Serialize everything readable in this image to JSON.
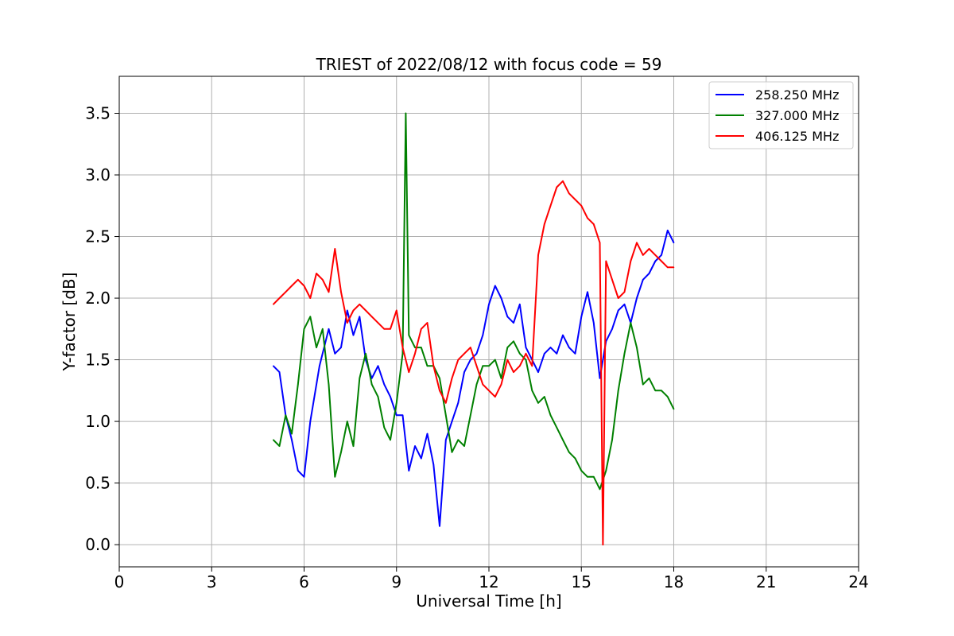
{
  "chart_data": {
    "type": "line",
    "title": "TRIEST of 2022/08/12 with focus code = 59",
    "xlabel": "Universal Time [h]",
    "ylabel": "Y-factor [dB]",
    "xlim": [
      0,
      24
    ],
    "ylim": [
      -0.18,
      3.8
    ],
    "x_ticks": [
      0,
      3,
      6,
      9,
      12,
      15,
      18,
      21,
      24
    ],
    "x_tick_labels": [
      "0",
      "3",
      "6",
      "9",
      "12",
      "15",
      "18",
      "21",
      "24"
    ],
    "y_ticks": [
      0.0,
      0.5,
      1.0,
      1.5,
      2.0,
      2.5,
      3.0,
      3.5
    ],
    "y_tick_labels": [
      "0.0",
      "0.5",
      "1.0",
      "1.5",
      "2.0",
      "2.5",
      "3.0",
      "3.5"
    ],
    "grid": true,
    "legend_position": "top-right",
    "series": [
      {
        "name": "258.250 MHz",
        "color": "#0000ff",
        "x": [
          5.0,
          5.2,
          5.4,
          5.6,
          5.8,
          6.0,
          6.2,
          6.5,
          6.8,
          7.0,
          7.2,
          7.4,
          7.6,
          7.8,
          8.0,
          8.2,
          8.4,
          8.6,
          8.8,
          9.0,
          9.2,
          9.4,
          9.6,
          9.8,
          10.0,
          10.2,
          10.4,
          10.6,
          10.8,
          11.0,
          11.2,
          11.4,
          11.6,
          11.8,
          12.0,
          12.2,
          12.4,
          12.6,
          12.8,
          13.0,
          13.2,
          13.4,
          13.6,
          13.8,
          14.0,
          14.2,
          14.4,
          14.6,
          14.8,
          15.0,
          15.2,
          15.4,
          15.6,
          15.8,
          16.0,
          16.2,
          16.4,
          16.6,
          16.8,
          17.0,
          17.2,
          17.4,
          17.6,
          17.8,
          18.0
        ],
        "y": [
          1.45,
          1.4,
          1.05,
          0.85,
          0.6,
          0.55,
          1.0,
          1.45,
          1.75,
          1.55,
          1.6,
          1.9,
          1.7,
          1.85,
          1.5,
          1.35,
          1.45,
          1.3,
          1.2,
          1.05,
          1.05,
          0.6,
          0.8,
          0.7,
          0.9,
          0.65,
          0.15,
          0.85,
          1.0,
          1.15,
          1.4,
          1.5,
          1.55,
          1.7,
          1.95,
          2.1,
          2.0,
          1.85,
          1.8,
          1.95,
          1.6,
          1.5,
          1.4,
          1.55,
          1.6,
          1.55,
          1.7,
          1.6,
          1.55,
          1.85,
          2.05,
          1.8,
          1.35,
          1.65,
          1.75,
          1.9,
          1.95,
          1.8,
          2.0,
          2.15,
          2.2,
          2.3,
          2.35,
          2.55,
          2.45
        ]
      },
      {
        "name": "327.000 MHz",
        "color": "#008000",
        "x": [
          5.0,
          5.2,
          5.4,
          5.6,
          5.8,
          6.0,
          6.2,
          6.4,
          6.6,
          6.8,
          7.0,
          7.2,
          7.4,
          7.6,
          7.8,
          8.0,
          8.2,
          8.4,
          8.6,
          8.8,
          9.0,
          9.2,
          9.3,
          9.4,
          9.6,
          9.8,
          10.0,
          10.2,
          10.4,
          10.6,
          10.8,
          11.0,
          11.2,
          11.4,
          11.6,
          11.8,
          12.0,
          12.2,
          12.4,
          12.6,
          12.8,
          13.0,
          13.2,
          13.4,
          13.6,
          13.8,
          14.0,
          14.2,
          14.4,
          14.6,
          14.8,
          15.0,
          15.2,
          15.4,
          15.6,
          15.8,
          16.0,
          16.2,
          16.4,
          16.6,
          16.8,
          17.0,
          17.2,
          17.4,
          17.6,
          17.8,
          18.0
        ],
        "y": [
          0.85,
          0.8,
          1.05,
          0.9,
          1.3,
          1.75,
          1.85,
          1.6,
          1.75,
          1.3,
          0.55,
          0.75,
          1.0,
          0.8,
          1.35,
          1.55,
          1.3,
          1.2,
          0.95,
          0.85,
          1.15,
          1.55,
          3.5,
          1.7,
          1.6,
          1.6,
          1.45,
          1.45,
          1.35,
          1.05,
          0.75,
          0.85,
          0.8,
          1.05,
          1.3,
          1.45,
          1.45,
          1.5,
          1.35,
          1.6,
          1.65,
          1.55,
          1.5,
          1.25,
          1.15,
          1.2,
          1.05,
          0.95,
          0.85,
          0.75,
          0.7,
          0.6,
          0.55,
          0.55,
          0.45,
          0.6,
          0.85,
          1.25,
          1.55,
          1.8,
          1.6,
          1.3,
          1.35,
          1.25,
          1.25,
          1.2,
          1.1
        ]
      },
      {
        "name": "406.125 MHz",
        "color": "#ff0000",
        "x": [
          5.0,
          5.2,
          5.4,
          5.6,
          5.8,
          6.0,
          6.2,
          6.4,
          6.6,
          6.8,
          7.0,
          7.2,
          7.4,
          7.6,
          7.8,
          8.0,
          8.2,
          8.4,
          8.6,
          8.8,
          9.0,
          9.2,
          9.4,
          9.6,
          9.8,
          10.0,
          10.2,
          10.4,
          10.6,
          10.8,
          11.0,
          11.2,
          11.4,
          11.6,
          11.8,
          12.0,
          12.2,
          12.4,
          12.6,
          12.8,
          13.0,
          13.2,
          13.4,
          13.6,
          13.8,
          14.0,
          14.2,
          14.4,
          14.6,
          14.8,
          15.0,
          15.2,
          15.4,
          15.6,
          15.7,
          15.8,
          16.0,
          16.2,
          16.4,
          16.6,
          16.8,
          17.0,
          17.2,
          17.4,
          17.6,
          17.8,
          18.0
        ],
        "y": [
          1.95,
          2.0,
          2.05,
          2.1,
          2.15,
          2.1,
          2.0,
          2.2,
          2.15,
          2.05,
          2.4,
          2.05,
          1.8,
          1.9,
          1.95,
          1.9,
          1.85,
          1.8,
          1.75,
          1.75,
          1.9,
          1.6,
          1.4,
          1.55,
          1.75,
          1.8,
          1.45,
          1.25,
          1.15,
          1.35,
          1.5,
          1.55,
          1.6,
          1.45,
          1.3,
          1.25,
          1.2,
          1.3,
          1.5,
          1.4,
          1.45,
          1.55,
          1.45,
          2.35,
          2.6,
          2.75,
          2.9,
          2.95,
          2.85,
          2.8,
          2.75,
          2.65,
          2.6,
          2.45,
          0.0,
          2.3,
          2.15,
          2.0,
          2.05,
          2.3,
          2.45,
          2.35,
          2.4,
          2.35,
          2.3,
          2.25,
          2.25
        ]
      }
    ]
  }
}
